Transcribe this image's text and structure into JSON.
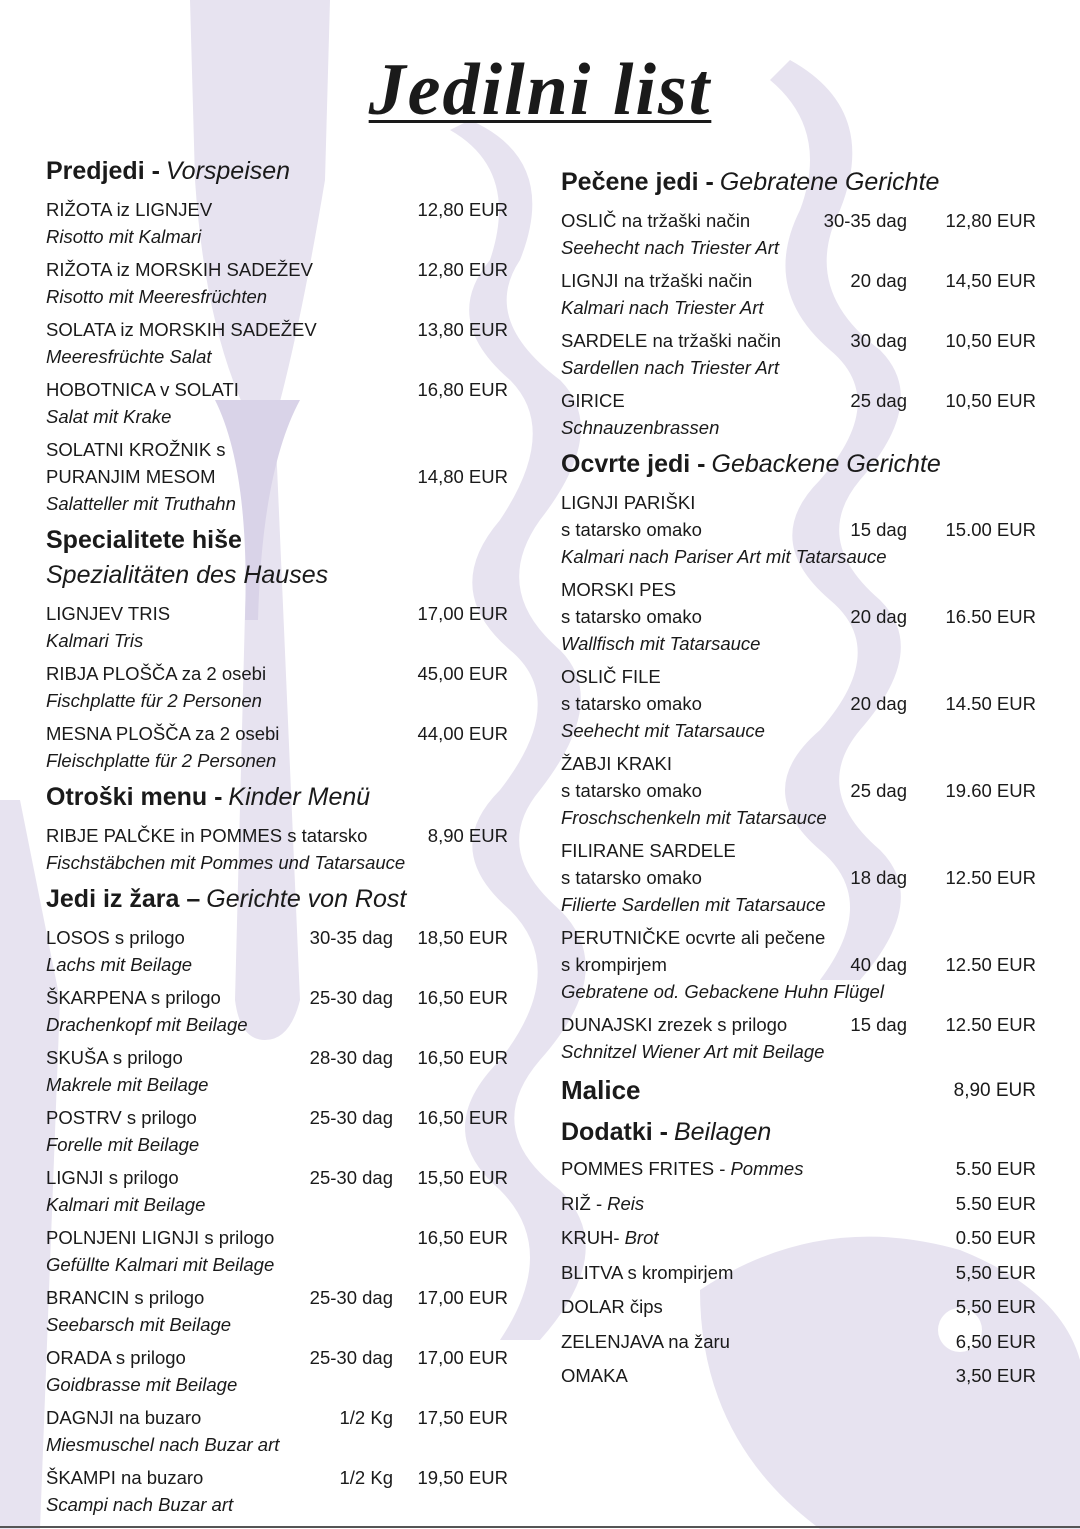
{
  "title": "Jedilni list",
  "left": [
    {
      "title": "Predjedi -",
      "subtitle": "Vorspeisen",
      "items": [
        {
          "name": "RIŽOTA iz LIGNJEV",
          "price": "12,80 EUR",
          "translation": "Risotto mit Kalmari"
        },
        {
          "name": "RIŽOTA iz MORSKIH SADEŽEV",
          "price": "12,80 EUR",
          "translation": "Risotto mit Meeresfrüchten"
        },
        {
          "name": "SOLATA iz MORSKIH SADEŽEV",
          "price": "13,80 EUR",
          "translation": "Meeresfrüchte Salat"
        },
        {
          "name": "HOBOTNICA v SOLATI",
          "price": "16,80 EUR",
          "translation": "Salat mit Krake"
        },
        {
          "name": "SOLATNI KROŽNIK s",
          "name2": "PURANJIM MESOM",
          "price": "14,80 EUR",
          "translation": "Salatteller mit Truthahn"
        }
      ]
    },
    {
      "title": "Specialitete hiše",
      "subtitle_line": "Spezialitäten des Hauses",
      "items": [
        {
          "name": "LIGNJEV TRIS",
          "price": "17,00 EUR",
          "translation": "Kalmari Tris"
        },
        {
          "name": "RIBJA PLOŠČA za 2 osebi",
          "price": "45,00 EUR",
          "translation": "Fischplatte für 2 Personen"
        },
        {
          "name": "MESNA PLOŠČA za 2 osebi",
          "price": "44,00 EUR",
          "translation": "Fleischplatte für 2 Personen"
        }
      ]
    },
    {
      "title": "Otroški menu -",
      "subtitle": "Kinder Menü",
      "items": [
        {
          "name": "RIBJE PALČKE in POMMES s tatarsko",
          "price": "8,90 EUR",
          "translation": "Fischstäbchen mit Pommes und Tatarsauce"
        }
      ]
    },
    {
      "title": "Jedi iz žara –",
      "subtitle": "Gerichte von Rost",
      "items": [
        {
          "name": "LOSOS s prilogo",
          "weight": "30-35 dag",
          "price": "18,50 EUR",
          "translation": "Lachs mit Beilage"
        },
        {
          "name": "ŠKARPENA s prilogo",
          "weight": "25-30 dag",
          "price": "16,50 EUR",
          "translation": "Drachenkopf mit Beilage"
        },
        {
          "name": "SKUŠA s prilogo",
          "weight": "28-30 dag",
          "price": "16,50 EUR",
          "translation": "Makrele mit Beilage"
        },
        {
          "name": "POSTRV s prilogo",
          "weight": "25-30 dag",
          "price": "16,50 EUR",
          "translation": "Forelle mit Beilage"
        },
        {
          "name": "LIGNJI s prilogo",
          "weight": "25-30 dag",
          "price": "15,50 EUR",
          "translation": "Kalmari mit Beilage"
        },
        {
          "name": "POLNJENI LIGNJI s prilogo",
          "price": "16,50 EUR",
          "translation": "Gefüllte Kalmari mit Beilage"
        },
        {
          "name": "BRANCIN s prilogo",
          "weight": "25-30 dag",
          "price": "17,00 EUR",
          "translation": "Seebarsch mit Beilage"
        },
        {
          "name": "ORADA s prilogo",
          "weight": "25-30 dag",
          "price": "17,00 EUR",
          "translation": "Goidbrasse mit Beilage"
        },
        {
          "name": "DAGNJI na buzaro",
          "weight": "1/2 Kg",
          "price": "17,50 EUR",
          "translation": "Miesmuschel nach Buzar art"
        },
        {
          "name": "ŠKAMPI na buzaro",
          "weight": "1/2 Kg",
          "price": "19,50 EUR",
          "translation": "Scampi nach Buzar art"
        }
      ]
    }
  ],
  "right": [
    {
      "title": "Pečene jedi -",
      "subtitle": "Gebratene Gerichte",
      "items": [
        {
          "name": "OSLIČ na tržaški način",
          "weight": "30-35 dag",
          "price": "12,80 EUR",
          "translation": "Seehecht nach Triester Art"
        },
        {
          "name": "LIGNJI na tržaški način",
          "weight": "20 dag",
          "price": "14,50 EUR",
          "translation": "Kalmari nach Triester Art"
        },
        {
          "name": "SARDELE na tržaški način",
          "weight": "30 dag",
          "price": "10,50 EUR",
          "translation": "Sardellen nach Triester Art"
        },
        {
          "name": "GIRICE",
          "weight": "25 dag",
          "price": "10,50 EUR",
          "translation": "Schnauzenbrassen"
        }
      ]
    },
    {
      "title": "Ocvrte jedi -",
      "subtitle": "Gebackene Gerichte",
      "items": [
        {
          "name": "LIGNJI PARIŠKI",
          "name2": "s tatarsko omako",
          "weight": "15 dag",
          "price": "15.00 EUR",
          "translation": "Kalmari nach Pariser Art mit Tatarsauce"
        },
        {
          "name": "MORSKI PES",
          "name2": "s tatarsko omako",
          "weight": "20 dag",
          "price": "16.50 EUR",
          "translation": "Wallfisch mit Tatarsauce"
        },
        {
          "name": "OSLIČ FILE",
          "name2": "s tatarsko omako",
          "weight": "20 dag",
          "price": "14.50 EUR",
          "translation": "Seehecht mit Tatarsauce"
        },
        {
          "name": "ŽABJI KRAKI",
          "name2": "s tatarsko omako",
          "weight": "25 dag",
          "price": "19.60 EUR",
          "translation": "Froschschenkeln mit Tatarsauce"
        },
        {
          "name": "FILIRANE SARDELE",
          "name2": "s tatarsko omako",
          "weight": "18 dag",
          "price": "12.50 EUR",
          "translation": "Filierte Sardellen mit Tatarsauce"
        },
        {
          "name": "PERUTNIČKE ocvrte ali pečene",
          "name2": "s krompirjem",
          "weight": "40 dag",
          "price": "12.50 EUR",
          "translation": "Gebratene od. Gebackene Huhn Flügel"
        },
        {
          "name": "DUNAJSKI zrezek s prilogo",
          "weight": "15 dag",
          "price": "12.50 EUR",
          "translation": "Schnitzel Wiener Art mit Beilage"
        }
      ]
    }
  ],
  "snack": {
    "title": "Malice",
    "price": "8,90 EUR"
  },
  "sides": {
    "title": "Dodatki -",
    "subtitle": "Beilagen",
    "items": [
      {
        "name": "POMMES FRITES -",
        "translation": "Pommes",
        "price": "5.50 EUR"
      },
      {
        "name": "RIŽ -",
        "translation": "Reis",
        "price": "5.50 EUR"
      },
      {
        "name": "KRUH-",
        "translation": "Brot",
        "price": "0.50 EUR"
      },
      {
        "name": "BLITVA s krompirjem",
        "price": "5,50 EUR"
      },
      {
        "name": "DOLAR čips",
        "price": "5,50 EUR"
      },
      {
        "name": "ZELENJAVA na žaru",
        "price": "6,50 EUR"
      },
      {
        "name": "OMAKA",
        "price": "3,50 EUR"
      }
    ]
  }
}
